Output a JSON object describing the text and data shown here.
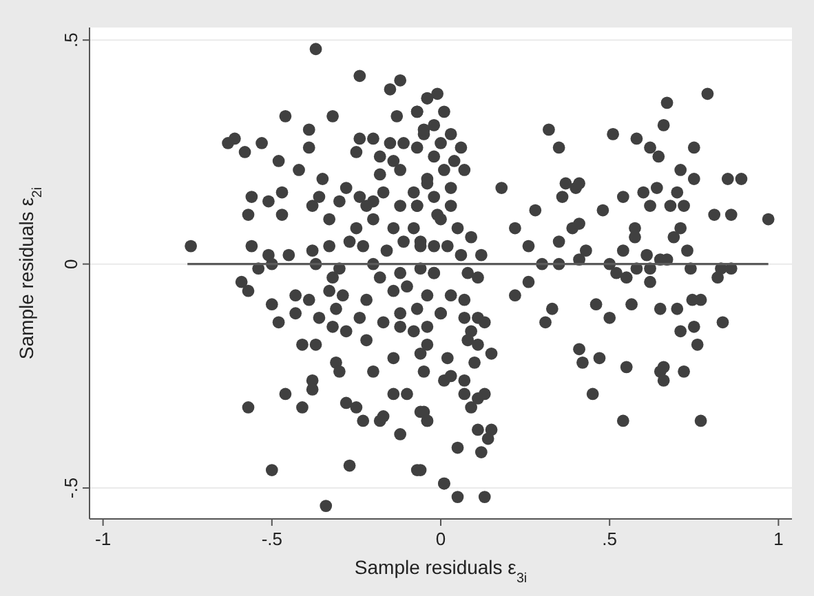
{
  "chart_data": {
    "type": "scatter",
    "xlabel": "Sample residuals ε$_{3i}$",
    "ylabel": "Sample residuals ε$_{2i}$",
    "xlim": [
      -1.04,
      1.04
    ],
    "ylim": [
      -0.569,
      0.528
    ],
    "xticks": [
      -1,
      {
        "value": -0.5,
        "label": "-.5"
      },
      0,
      {
        "value": 0.5,
        "label": ".5"
      },
      1
    ],
    "yticks": [
      {
        "value": -0.5,
        "label": "-.5"
      },
      0,
      {
        "value": 0.5,
        "label": ".5"
      }
    ],
    "grid": "y",
    "series": [
      {
        "marker": "circle",
        "color": "#404040",
        "x": [
          -0.37,
          -0.24,
          -0.12,
          -0.15,
          -0.46,
          -0.32,
          -0.13,
          -0.07,
          -0.04,
          -0.61,
          -0.63,
          -0.53,
          -0.58,
          -0.48,
          -0.39,
          -0.39,
          -0.42,
          -0.24,
          -0.25,
          -0.2,
          -0.15,
          -0.11,
          -0.05,
          -0.02,
          -0.18,
          -0.14,
          -0.07,
          -0.02,
          -0.35,
          -0.28,
          -0.18,
          -0.12,
          -0.04,
          -0.56,
          -0.51,
          -0.47,
          -0.47,
          -0.57,
          -0.38,
          -0.36,
          -0.3,
          -0.24,
          -0.2,
          -0.17,
          -0.22,
          -0.12,
          -0.07,
          -0.02,
          -0.33,
          -0.25,
          -0.2,
          -0.14,
          -0.08,
          -0.01,
          -0.74,
          -0.56,
          -0.51,
          -0.45,
          -0.38,
          -0.33,
          -0.27,
          -0.23,
          -0.16,
          -0.11,
          -0.06,
          -0.02,
          -0.54,
          -0.5,
          -0.37,
          -0.2,
          -0.06,
          -0.59,
          -0.57,
          -0.32,
          -0.3,
          -0.18,
          -0.12,
          -0.02,
          -0.5,
          -0.43,
          -0.39,
          -0.33,
          -0.29,
          -0.22,
          -0.14,
          -0.1,
          -0.04,
          -0.48,
          -0.43,
          -0.36,
          -0.31,
          -0.24,
          -0.17,
          -0.12,
          -0.07,
          0,
          -0.32,
          -0.28,
          -0.22,
          -0.12,
          -0.08,
          -0.04,
          -0.41,
          -0.37,
          -0.31,
          -0.3,
          -0.2,
          -0.14,
          -0.06,
          -0.04,
          -0.05,
          0.01,
          -0.38,
          -0.46,
          -0.38,
          -0.41,
          -0.57,
          -0.28,
          -0.25,
          -0.14,
          -0.1,
          -0.23,
          -0.18,
          -0.17,
          -0.12,
          -0.06,
          -0.04,
          -0.5,
          -0.27,
          -0.07,
          0.01,
          -0.34,
          -0.01,
          -0.04,
          -0.07,
          0.01,
          -0.05,
          0.03,
          0,
          0.06,
          0.04,
          0.01,
          0.07,
          -0.04,
          0.03,
          -0.08,
          -0.07,
          0.03,
          0,
          0.05,
          0.09,
          -0.06,
          0.02,
          0.12,
          0.06,
          -0.02,
          0.08,
          0.11,
          0.03,
          0.07,
          0,
          0.07,
          0.11,
          0.13,
          0.09,
          0.08,
          0.11,
          0.15,
          0.1,
          0.02,
          0.03,
          0.07,
          0.07,
          0.13,
          0.11,
          0.09,
          -0.05,
          -0.04,
          0.11,
          0.15,
          0.14,
          0.12,
          0.05,
          -0.06,
          0.01,
          0.05,
          0.13,
          0.18,
          0.22,
          0.26,
          0.28,
          0.32,
          0.35,
          0.37,
          0.36,
          0.35,
          0.3,
          0.35,
          0.22,
          0.26,
          0.33,
          0.31,
          0.4,
          0.41,
          0.39,
          0.41,
          0.43,
          0.41,
          0.41,
          0.42,
          0.47,
          0.46,
          0.5,
          0.45,
          0.51,
          0.48,
          0.54,
          0.5,
          0.52,
          0.55,
          0.54,
          0.575,
          0.575,
          0.58,
          0.62,
          0.645,
          0.6,
          0.64,
          0.62,
          0.58,
          0.61,
          0.62,
          0.62,
          0.565,
          0.55,
          0.54,
          0.65,
          0.65,
          0.66,
          0.66,
          0.67,
          0.66,
          0.65,
          0.67,
          0.68,
          0.7,
          0.69,
          0.71,
          0.72,
          0.71,
          0.75,
          0.75,
          0.73,
          0.74,
          0.7,
          0.71,
          0.745,
          0.77,
          0.75,
          0.76,
          0.72,
          0.77,
          0.79,
          0.81,
          0.82,
          0.83,
          0.86,
          0.835,
          0.85,
          0.89,
          0.86,
          0.97
        ],
        "values": [
          0.48,
          0.42,
          0.41,
          0.39,
          0.33,
          0.33,
          0.33,
          0.34,
          0.37,
          0.28,
          0.27,
          0.27,
          0.25,
          0.23,
          0.3,
          0.26,
          0.21,
          0.28,
          0.25,
          0.28,
          0.27,
          0.27,
          0.29,
          0.31,
          0.24,
          0.23,
          0.26,
          0.24,
          0.19,
          0.17,
          0.2,
          0.21,
          0.19,
          0.15,
          0.14,
          0.16,
          0.11,
          0.11,
          0.13,
          0.15,
          0.14,
          0.15,
          0.14,
          0.16,
          0.13,
          0.13,
          0.13,
          0.15,
          0.1,
          0.08,
          0.1,
          0.08,
          0.08,
          0.11,
          0.04,
          0.04,
          0.02,
          0.02,
          0.03,
          0.04,
          0.05,
          0.04,
          0.03,
          0.05,
          0.05,
          0.04,
          -0.01,
          0,
          0,
          0,
          -0.01,
          -0.04,
          -0.06,
          -0.03,
          -0.01,
          -0.03,
          -0.02,
          -0.02,
          -0.09,
          -0.07,
          -0.08,
          -0.06,
          -0.07,
          -0.08,
          -0.06,
          -0.05,
          -0.07,
          -0.13,
          -0.11,
          -0.12,
          -0.1,
          -0.12,
          -0.13,
          -0.11,
          -0.1,
          -0.11,
          -0.14,
          -0.15,
          -0.17,
          -0.14,
          -0.15,
          -0.14,
          -0.18,
          -0.18,
          -0.22,
          -0.24,
          -0.24,
          -0.21,
          -0.2,
          -0.18,
          -0.24,
          -0.26,
          -0.26,
          -0.29,
          -0.28,
          -0.32,
          -0.32,
          -0.31,
          -0.32,
          -0.29,
          -0.29,
          -0.35,
          -0.35,
          -0.34,
          -0.38,
          -0.33,
          -0.35,
          -0.46,
          -0.45,
          -0.46,
          -0.49,
          -0.54,
          0.38,
          0.37,
          0.34,
          0.34,
          0.3,
          0.29,
          0.27,
          0.26,
          0.23,
          0.21,
          0.21,
          0.18,
          0.17,
          0.16,
          0.13,
          0.13,
          0.1,
          0.08,
          0.06,
          0.04,
          0.04,
          0.02,
          0.02,
          -0.02,
          -0.02,
          -0.03,
          -0.07,
          -0.08,
          -0.11,
          -0.12,
          -0.12,
          -0.13,
          -0.15,
          -0.17,
          -0.18,
          -0.2,
          -0.22,
          -0.21,
          -0.25,
          -0.26,
          -0.29,
          -0.29,
          -0.3,
          -0.32,
          -0.33,
          -0.35,
          -0.37,
          -0.37,
          -0.39,
          -0.42,
          -0.41,
          -0.46,
          -0.49,
          -0.52,
          -0.52,
          0.17,
          0.08,
          0.04,
          0.12,
          0.3,
          0.26,
          0.18,
          0.15,
          0.05,
          0,
          0,
          -0.07,
          -0.04,
          -0.1,
          -0.13,
          0.17,
          0.18,
          0.08,
          0.09,
          0.03,
          0.01,
          -0.19,
          -0.22,
          -0.21,
          -0.09,
          -0.12,
          -0.29,
          0.29,
          0.12,
          0.15,
          0,
          -0.02,
          -0.03,
          0.03,
          0.08,
          0.06,
          0.28,
          0.26,
          0.24,
          0.16,
          0.17,
          0.13,
          -0.01,
          0.02,
          -0.01,
          -0.04,
          -0.09,
          -0.23,
          -0.35,
          -0.1,
          -0.24,
          -0.23,
          -0.26,
          0.36,
          0.31,
          0.01,
          0.01,
          0.13,
          0.16,
          0.06,
          0.08,
          0.13,
          0.21,
          0.26,
          0.19,
          0.03,
          -0.01,
          -0.1,
          -0.15,
          -0.08,
          -0.08,
          -0.14,
          -0.18,
          -0.24,
          -0.35,
          0.38,
          0.11,
          -0.03,
          -0.01,
          -0.01,
          -0.13,
          0.19,
          0.19,
          0.11,
          0.1
        ]
      },
      {
        "type": "line",
        "color": "#5a5a5a",
        "x": [
          -0.75,
          0.97
        ],
        "values": [
          0,
          0
        ]
      }
    ]
  }
}
